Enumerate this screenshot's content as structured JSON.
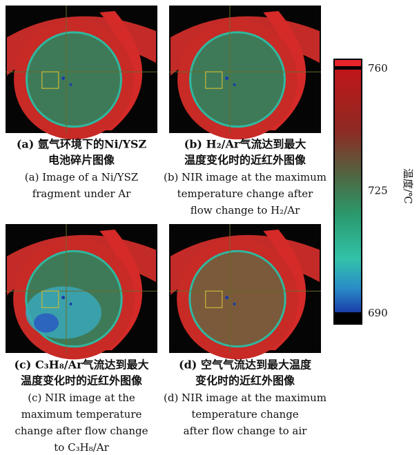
{
  "panels": [
    {
      "caption_zh": [
        "(a) 氩气环境下的Ni/YSZ",
        "电池碎片图像"
      ],
      "caption_en": [
        "(a) Image of a Ni/YSZ",
        "fragment under Ar"
      ]
    },
    {
      "caption_zh": [
        "(b) H₂/Ar气流达到最大",
        "温度变化时的近红外图像"
      ],
      "caption_en": [
        "(b) NIR image at the maximum",
        "temperature change after",
        "flow change to H₂/Ar"
      ]
    },
    {
      "caption_zh": [
        "(c) C₃H₈/Ar气流达到最大",
        "温度变化时的近红外图像"
      ],
      "caption_en": [
        "(c) NIR image at the",
        "maximum temperature",
        "change after flow change",
        "to C₃H₈/Ar"
      ]
    },
    {
      "caption_zh": [
        "(d) 空气气流达到最大温度",
        "变化时的近红外图像"
      ],
      "caption_en": [
        "(d) NIR image at the maximum",
        "temperature change",
        "after flow change to air"
      ]
    }
  ],
  "colorbar": {
    "ticks": [
      760,
      725,
      690
    ],
    "label": "温度/℃"
  }
}
